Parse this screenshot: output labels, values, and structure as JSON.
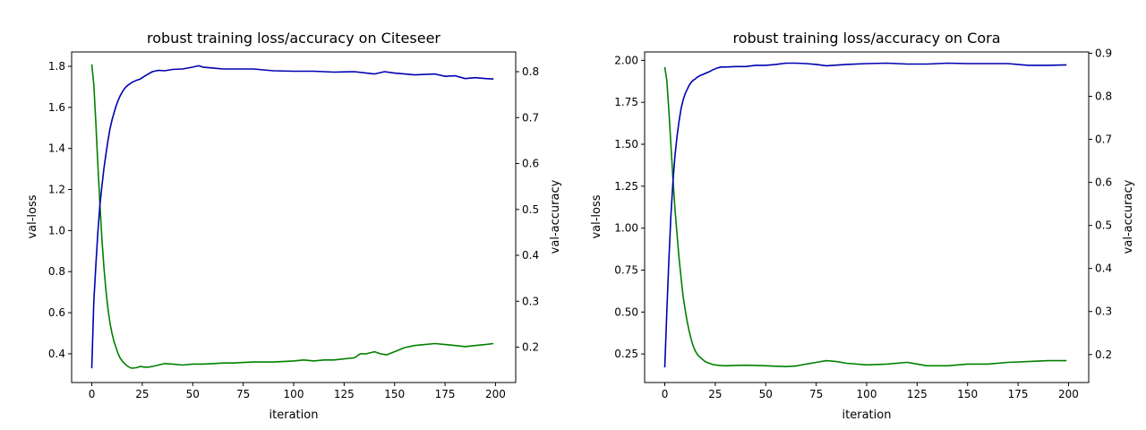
{
  "chart_data": [
    {
      "type": "line",
      "title": "robust training loss/accuracy on Citeseer",
      "xlabel": "iteration",
      "ylabel_left": "val-loss",
      "ylabel_right": "val-accuracy",
      "xlim": [
        -10,
        210
      ],
      "ylim_left": [
        0.26,
        1.87
      ],
      "ylim_right": [
        0.123,
        0.843
      ],
      "xticks": [
        "0",
        "25",
        "50",
        "75",
        "100",
        "125",
        "150",
        "175",
        "200"
      ],
      "yticks_left": [
        "0.4",
        "0.6",
        "0.8",
        "1.0",
        "1.2",
        "1.4",
        "1.6",
        "1.8"
      ],
      "yticks_right": [
        "0.2",
        "0.3",
        "0.4",
        "0.5",
        "0.6",
        "0.7",
        "0.8"
      ],
      "grid": false,
      "series": [
        {
          "axis": "left",
          "color": "#008000",
          "x": [
            0,
            1,
            2,
            3,
            4,
            5,
            6,
            7,
            8,
            9,
            10,
            11,
            12,
            13,
            14,
            15,
            16,
            17,
            18,
            19,
            20,
            22,
            24,
            26,
            28,
            30,
            33,
            36,
            40,
            45,
            50,
            55,
            60,
            65,
            70,
            80,
            90,
            100,
            105,
            110,
            115,
            120,
            125,
            130,
            133,
            136,
            140,
            143,
            146,
            150,
            155,
            160,
            165,
            170,
            175,
            180,
            185,
            190,
            195,
            199
          ],
          "y": [
            1.81,
            1.71,
            1.52,
            1.32,
            1.13,
            0.96,
            0.82,
            0.71,
            0.62,
            0.55,
            0.5,
            0.46,
            0.43,
            0.4,
            0.38,
            0.365,
            0.355,
            0.345,
            0.338,
            0.332,
            0.33,
            0.332,
            0.338,
            0.335,
            0.335,
            0.338,
            0.345,
            0.352,
            0.35,
            0.345,
            0.35,
            0.35,
            0.352,
            0.355,
            0.355,
            0.36,
            0.36,
            0.365,
            0.37,
            0.365,
            0.37,
            0.37,
            0.375,
            0.38,
            0.4,
            0.4,
            0.41,
            0.4,
            0.395,
            0.41,
            0.43,
            0.44,
            0.445,
            0.45,
            0.445,
            0.44,
            0.435,
            0.44,
            0.445,
            0.45
          ]
        },
        {
          "axis": "right",
          "color": "#0000b0",
          "x": [
            0,
            1,
            2,
            3,
            4,
            5,
            6,
            7,
            8,
            9,
            10,
            11,
            12,
            13,
            14,
            15,
            16,
            17,
            18,
            19,
            20,
            22,
            24,
            26,
            28,
            30,
            33,
            36,
            40,
            45,
            50,
            53,
            55,
            60,
            65,
            70,
            80,
            90,
            100,
            110,
            120,
            130,
            140,
            145,
            150,
            155,
            160,
            170,
            175,
            180,
            185,
            190,
            195,
            199
          ],
          "y": [
            0.154,
            0.3,
            0.38,
            0.45,
            0.51,
            0.55,
            0.59,
            0.62,
            0.65,
            0.675,
            0.695,
            0.71,
            0.725,
            0.737,
            0.747,
            0.755,
            0.762,
            0.767,
            0.771,
            0.774,
            0.777,
            0.781,
            0.784,
            0.79,
            0.795,
            0.8,
            0.803,
            0.802,
            0.805,
            0.806,
            0.81,
            0.813,
            0.81,
            0.808,
            0.806,
            0.806,
            0.806,
            0.802,
            0.801,
            0.801,
            0.799,
            0.8,
            0.795,
            0.8,
            0.797,
            0.795,
            0.793,
            0.795,
            0.79,
            0.791,
            0.785,
            0.787,
            0.785,
            0.784
          ]
        }
      ]
    },
    {
      "type": "line",
      "title": "robust training loss/accuracy on Cora",
      "xlabel": "iteration",
      "ylabel_left": "val-loss",
      "ylabel_right": "val-accuracy",
      "xlim": [
        -10,
        210
      ],
      "ylim_left": [
        0.08,
        2.05
      ],
      "ylim_right": [
        0.135,
        0.903
      ],
      "xticks": [
        "0",
        "25",
        "50",
        "75",
        "100",
        "125",
        "150",
        "175",
        "200"
      ],
      "yticks_left": [
        "0.25",
        "0.50",
        "0.75",
        "1.00",
        "1.25",
        "1.50",
        "1.75",
        "2.00"
      ],
      "yticks_right": [
        "0.2",
        "0.3",
        "0.4",
        "0.5",
        "0.6",
        "0.7",
        "0.8",
        "0.9"
      ],
      "grid": false,
      "series": [
        {
          "axis": "left",
          "color": "#008000",
          "x": [
            0,
            1,
            2,
            3,
            4,
            5,
            6,
            7,
            8,
            9,
            10,
            11,
            12,
            13,
            14,
            15,
            16,
            17,
            18,
            19,
            20,
            22,
            24,
            26,
            28,
            30,
            35,
            40,
            45,
            50,
            55,
            60,
            65,
            70,
            75,
            80,
            85,
            90,
            100,
            110,
            120,
            130,
            140,
            150,
            160,
            170,
            180,
            190,
            199
          ],
          "y": [
            1.96,
            1.88,
            1.7,
            1.5,
            1.3,
            1.12,
            0.97,
            0.83,
            0.71,
            0.6,
            0.52,
            0.45,
            0.39,
            0.34,
            0.3,
            0.27,
            0.25,
            0.235,
            0.225,
            0.215,
            0.205,
            0.195,
            0.187,
            0.183,
            0.181,
            0.18,
            0.182,
            0.183,
            0.182,
            0.18,
            0.177,
            0.175,
            0.178,
            0.19,
            0.2,
            0.21,
            0.205,
            0.195,
            0.185,
            0.19,
            0.2,
            0.18,
            0.18,
            0.19,
            0.19,
            0.2,
            0.205,
            0.21,
            0.21
          ]
        },
        {
          "axis": "right",
          "color": "#0000b0",
          "x": [
            0,
            1,
            2,
            3,
            4,
            5,
            6,
            7,
            8,
            9,
            10,
            11,
            12,
            13,
            14,
            15,
            16,
            17,
            18,
            19,
            20,
            22,
            24,
            26,
            28,
            30,
            35,
            40,
            45,
            50,
            55,
            60,
            65,
            70,
            75,
            80,
            90,
            100,
            110,
            120,
            130,
            140,
            150,
            160,
            170,
            180,
            190,
            199
          ],
          "y": [
            0.17,
            0.3,
            0.42,
            0.52,
            0.6,
            0.66,
            0.705,
            0.74,
            0.77,
            0.79,
            0.805,
            0.815,
            0.825,
            0.832,
            0.837,
            0.84,
            0.844,
            0.847,
            0.849,
            0.851,
            0.853,
            0.857,
            0.862,
            0.866,
            0.868,
            0.868,
            0.869,
            0.869,
            0.872,
            0.872,
            0.874,
            0.877,
            0.877,
            0.876,
            0.874,
            0.871,
            0.874,
            0.876,
            0.877,
            0.875,
            0.875,
            0.877,
            0.876,
            0.876,
            0.876,
            0.872,
            0.872,
            0.873
          ]
        }
      ]
    }
  ]
}
